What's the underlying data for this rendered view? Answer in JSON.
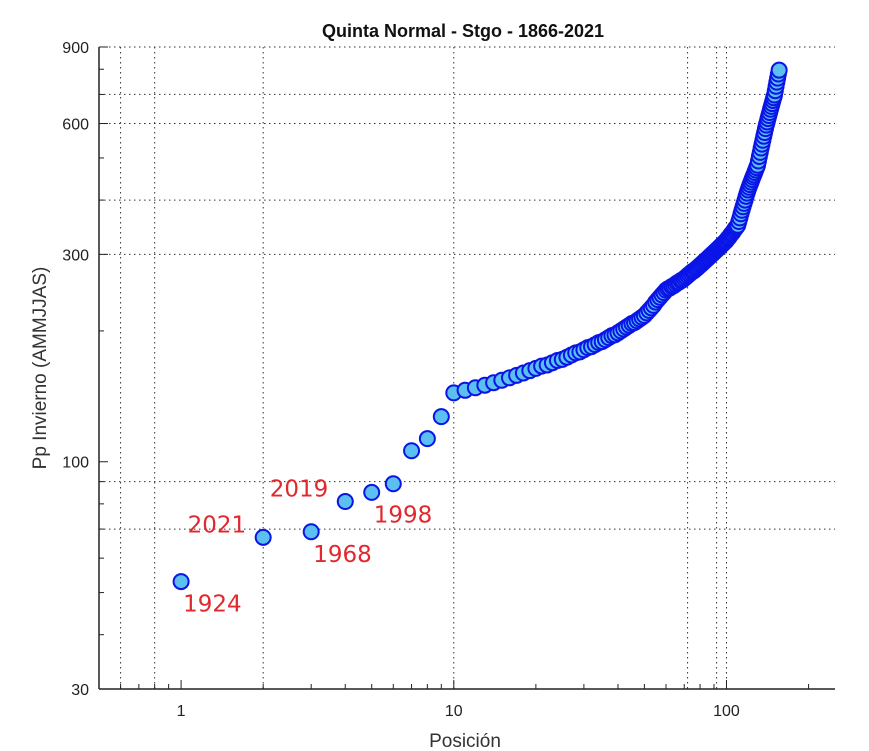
{
  "chart_data": {
    "type": "scatter",
    "title": "Quinta Normal - Stgo - 1866-2021",
    "xlabel": "Posición",
    "ylabel": "Pp Invierno (AMMJJAS)",
    "xscale": "log",
    "yscale": "log",
    "xlim": [
      0.5,
      250
    ],
    "ylim": [
      30,
      900
    ],
    "xticks": [
      1,
      10,
      100
    ],
    "xtick_labels": [
      "1",
      "10",
      "100"
    ],
    "yticks": [
      30,
      100,
      300,
      600,
      900
    ],
    "ytick_labels": [
      "30",
      "100",
      "300",
      "600",
      "900"
    ],
    "x_grid": [
      0.6,
      0.8,
      2,
      10,
      72,
      92,
      100
    ],
    "y_grid": [
      70,
      90,
      300,
      400,
      600,
      700,
      900
    ],
    "grid": true,
    "marker_fill": "#5bc0f0",
    "marker_edge": "#0a14e6",
    "annotation_color": "#e0282e",
    "values": [
      53,
      67,
      69,
      81,
      85,
      89,
      106,
      113,
      127,
      144,
      146,
      148,
      150,
      152,
      154,
      156,
      158,
      160,
      162,
      164,
      166,
      167,
      169,
      171,
      172,
      174,
      176,
      178,
      179,
      181,
      183,
      184,
      186,
      188,
      189,
      191,
      193,
      195,
      196,
      198,
      200,
      202,
      204,
      206,
      208,
      209,
      211,
      213,
      215,
      217,
      220,
      223,
      226,
      229,
      233,
      236,
      239,
      242,
      245,
      248,
      250,
      251,
      253,
      254,
      256,
      258,
      259,
      261,
      262,
      264,
      266,
      268,
      270,
      272,
      274,
      275,
      277,
      279,
      281,
      283,
      285,
      287,
      289,
      291,
      293,
      295,
      297,
      299,
      301,
      303,
      305,
      307,
      309,
      311,
      313,
      315,
      317,
      319,
      321,
      323,
      326,
      328,
      331,
      334,
      336,
      339,
      342,
      345,
      347,
      350,
      357,
      364,
      372,
      379,
      386,
      393,
      400,
      408,
      415,
      422,
      428,
      434,
      440,
      446,
      452,
      457,
      463,
      469,
      475,
      481,
      492,
      504,
      515,
      527,
      538,
      549,
      561,
      572,
      584,
      595,
      605,
      616,
      626,
      636,
      647,
      657,
      667,
      678,
      688,
      698,
      714,
      731,
      747,
      763,
      780,
      796
    ],
    "annotations": [
      {
        "label": "1924",
        "rank": 1,
        "pos": "below-right"
      },
      {
        "label": "2021",
        "rank": 2,
        "pos": "above-left"
      },
      {
        "label": "1968",
        "rank": 3,
        "pos": "below-right"
      },
      {
        "label": "2019",
        "rank": 4,
        "pos": "above-left"
      },
      {
        "label": "1998",
        "rank": 5,
        "pos": "below-right"
      }
    ]
  }
}
